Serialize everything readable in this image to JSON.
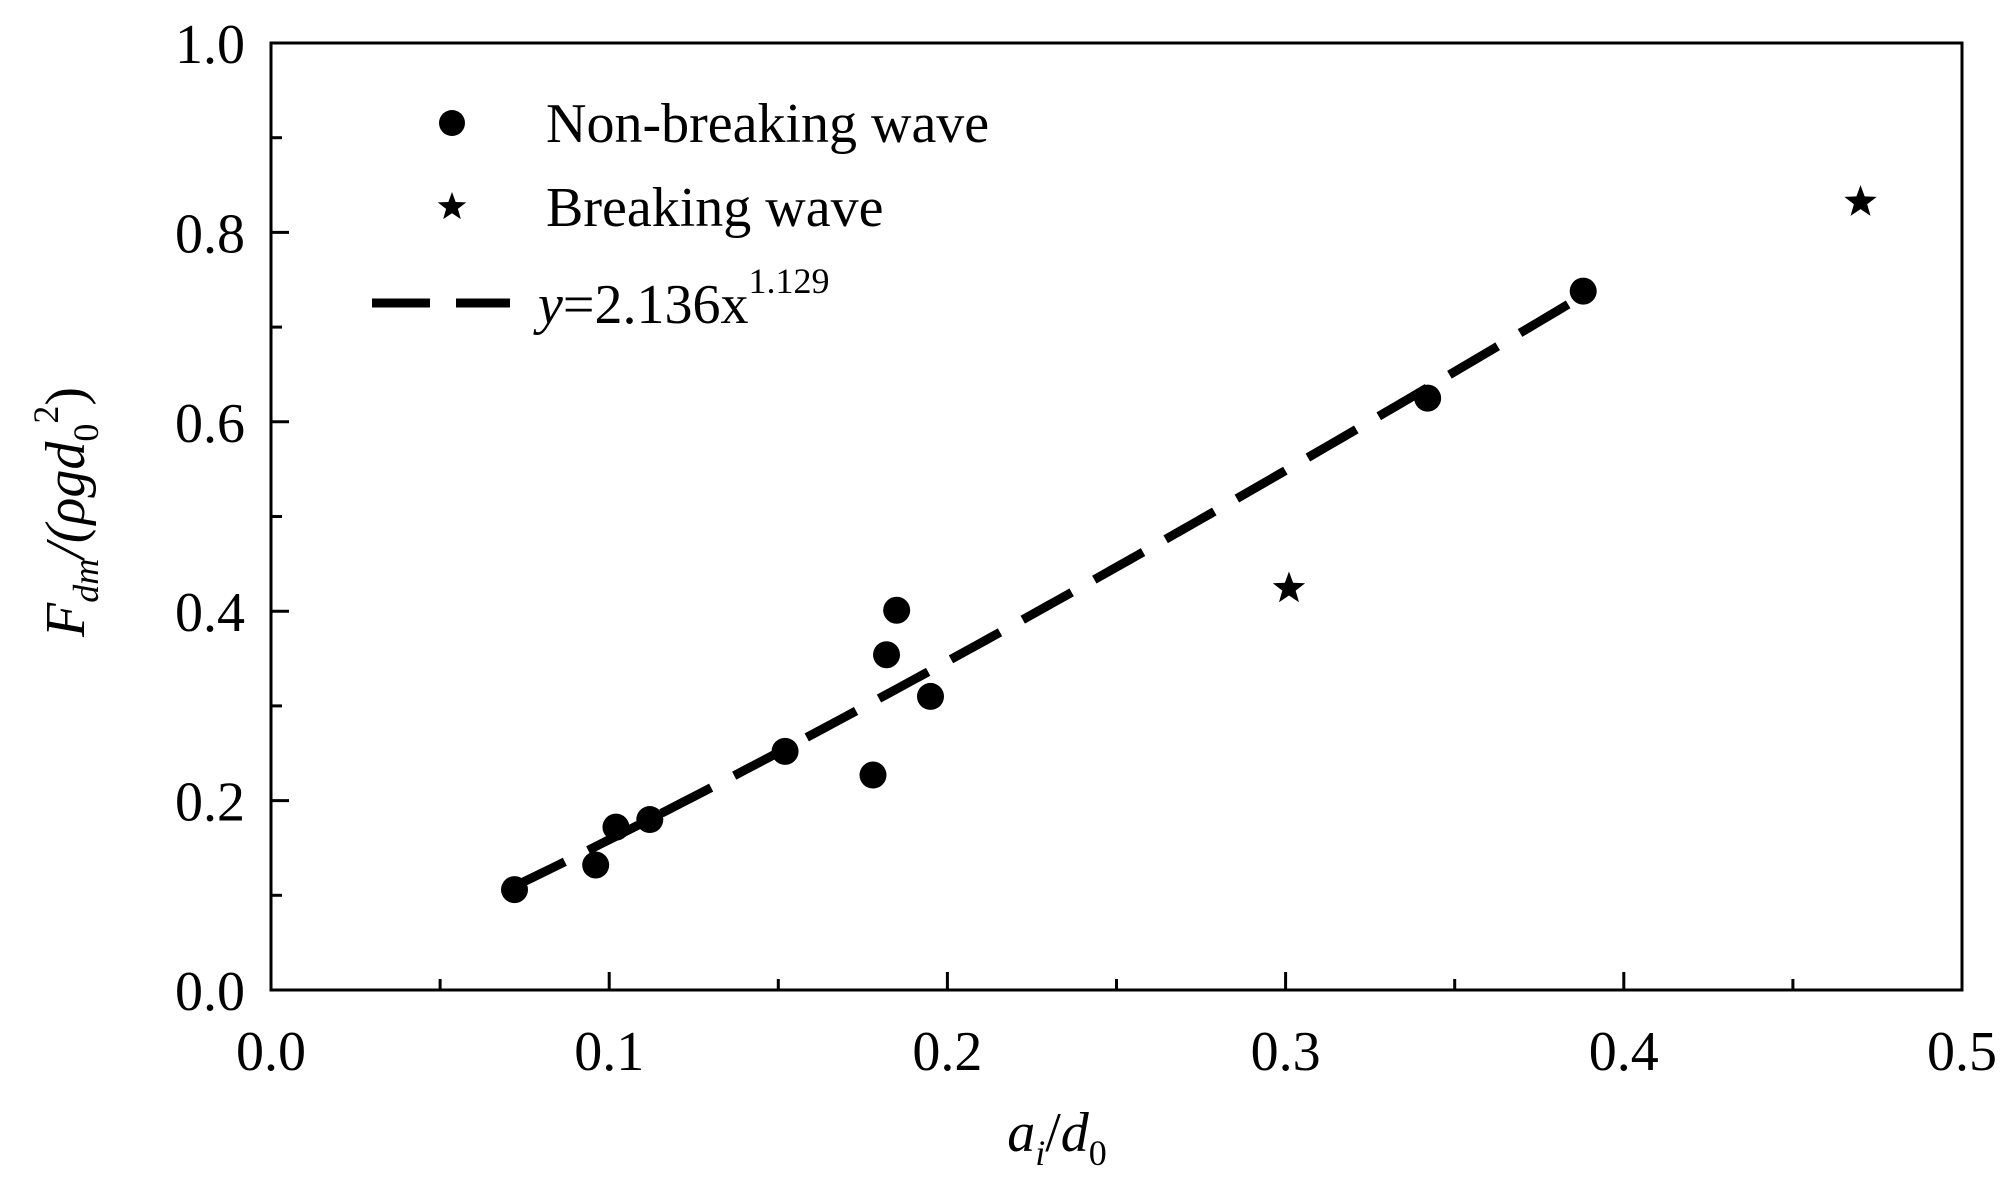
{
  "chart_data": {
    "type": "scatter",
    "title": "",
    "xlim": [
      0.0,
      0.5
    ],
    "ylim": [
      0.0,
      1.0
    ],
    "x_major_ticks": [
      0.0,
      0.1,
      0.2,
      0.3,
      0.4,
      0.5
    ],
    "x_minor_ticks": [
      0.05,
      0.15,
      0.25,
      0.35,
      0.45
    ],
    "y_major_ticks": [
      0.0,
      0.2,
      0.4,
      0.6,
      0.8,
      1.0
    ],
    "y_minor_ticks": [
      0.1,
      0.3,
      0.5,
      0.7,
      0.9
    ],
    "x_tick_labels": [
      "0.0",
      "0.1",
      "0.2",
      "0.3",
      "0.4",
      "0.5"
    ],
    "y_tick_labels": [
      "0.0",
      "0.2",
      "0.4",
      "0.6",
      "0.8",
      "1.0"
    ],
    "xlabel": {
      "main": "a",
      "sub1": "i",
      "slash": "/",
      "main2": "d",
      "sub2": "0"
    },
    "ylabel": {
      "F": "F",
      "sub_dm": "dm",
      "rest": "/(ρgd",
      "sub0": "0",
      "sup2": "2",
      "close": ")"
    },
    "grid": false,
    "legend_position": "top-left",
    "series": [
      {
        "name": "Non-breaking wave",
        "marker": "circle",
        "color": "#000000",
        "points": [
          [
            0.072,
            0.106
          ],
          [
            0.096,
            0.132
          ],
          [
            0.102,
            0.172
          ],
          [
            0.112,
            0.18
          ],
          [
            0.152,
            0.252
          ],
          [
            0.178,
            0.227
          ],
          [
            0.182,
            0.354
          ],
          [
            0.185,
            0.401
          ],
          [
            0.195,
            0.31
          ],
          [
            0.342,
            0.625
          ],
          [
            0.388,
            0.738
          ]
        ]
      },
      {
        "name": "Breaking wave",
        "marker": "star",
        "color": "#000000",
        "points": [
          [
            0.301,
            0.424
          ],
          [
            0.47,
            0.832
          ]
        ]
      }
    ],
    "fit": {
      "prefix": "y",
      "eq": "=2.136x",
      "exponent": "1.129",
      "a": 2.136,
      "b": 1.129,
      "x_range": [
        0.072,
        0.388
      ],
      "style": "dashed"
    }
  }
}
